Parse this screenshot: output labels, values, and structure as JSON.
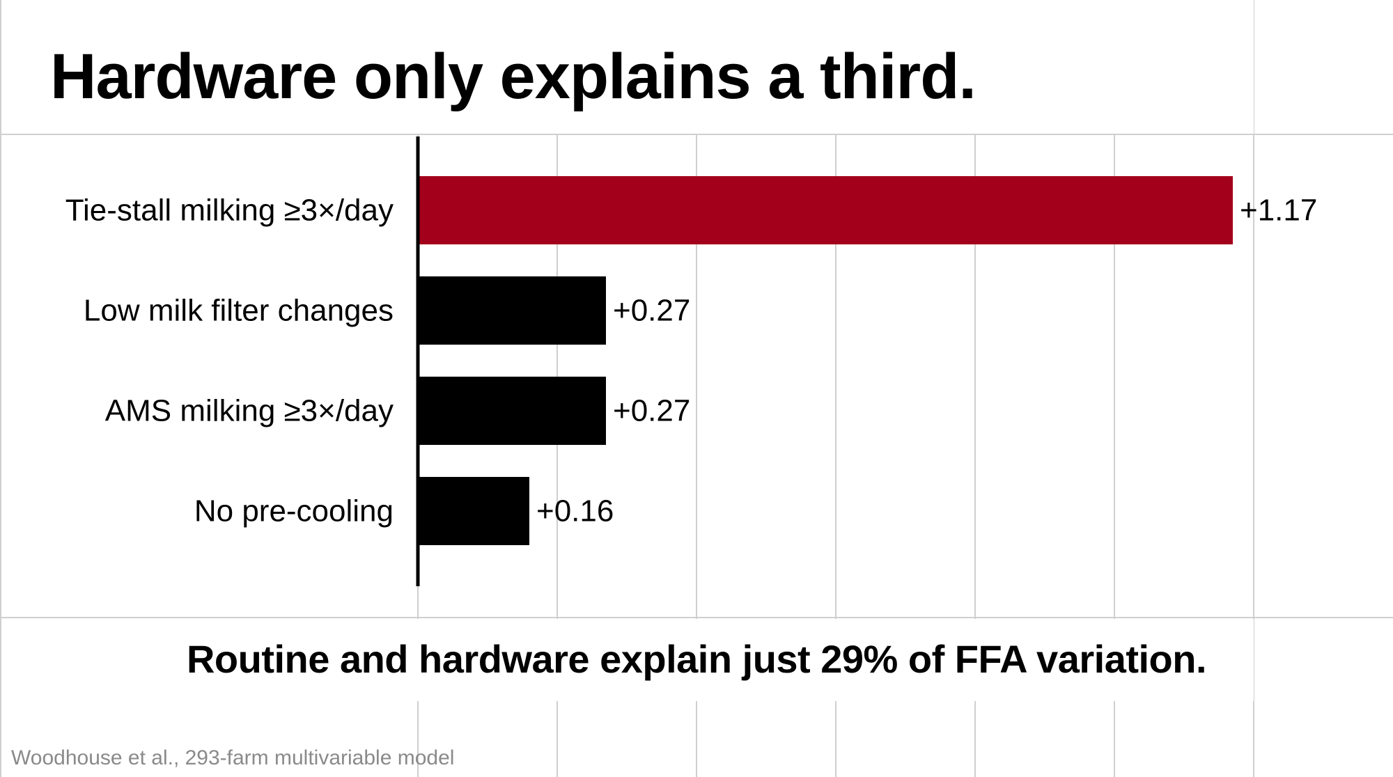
{
  "title": "Hardware only explains a third.",
  "subtitle": "Routine and hardware explain just 29% of FFA variation.",
  "source": "Woodhouse et al., 293-farm multivariable model",
  "colors": {
    "highlight": "#a3001b",
    "bar": "#000000",
    "grid": "#cfcfcf",
    "source_text": "#8a8a8a"
  },
  "chart_data": {
    "type": "bar",
    "orientation": "horizontal",
    "title": "Hardware only explains a third.",
    "categories": [
      "Tie-stall milking ≥3×/day",
      "Low milk filter changes",
      "AMS milking ≥3×/day",
      "No pre-cooling"
    ],
    "values": [
      1.17,
      0.27,
      0.27,
      0.16
    ],
    "value_labels": [
      "+1.17",
      "+0.27",
      "+0.27",
      "+0.16"
    ],
    "highlighted_index": 0,
    "xlim": [
      0,
      1.2
    ],
    "grid": true,
    "xlabel": "",
    "ylabel": ""
  }
}
